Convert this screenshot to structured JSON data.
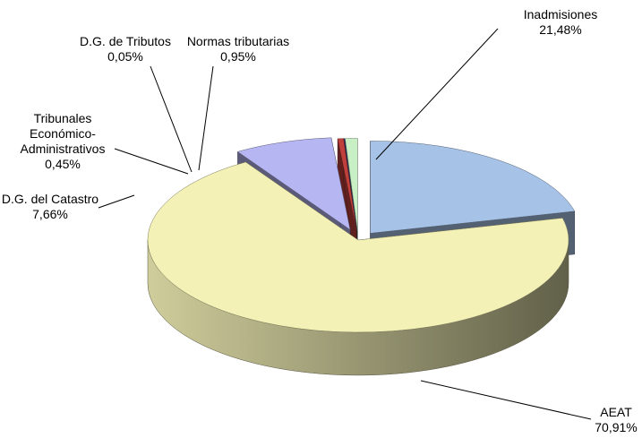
{
  "chart_data": {
    "type": "pie3d",
    "categories": [
      "Inadmisiones",
      "AEAT",
      "D.G. del Catastro",
      "Tribunales Económico-Administrativos",
      "D.G. de Tributos",
      "Normas tributarias"
    ],
    "values": [
      21.48,
      70.91,
      7.66,
      0.45,
      0.05,
      0.95
    ],
    "value_labels": [
      "21,48%",
      "70,91%",
      "7,66%",
      "0,45%",
      "0,05%",
      "0,95%"
    ],
    "colors": [
      "#a6c2e6",
      "#f3f1b6",
      "#b6b6f2",
      "#c0403c",
      "#3a4a9a",
      "#c8f0c4"
    ]
  }
}
